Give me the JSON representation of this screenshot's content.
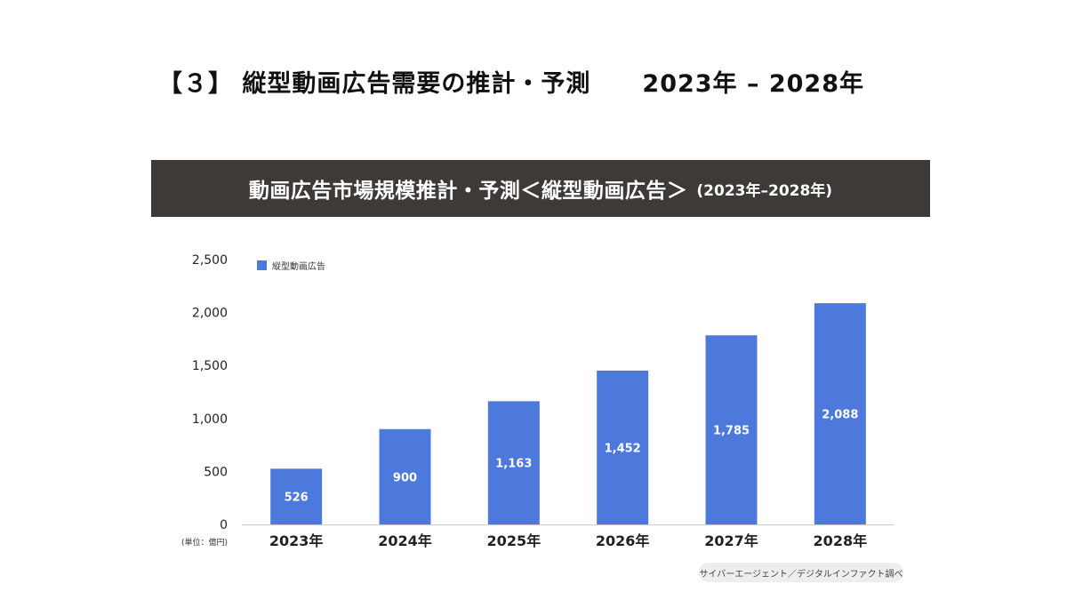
{
  "header": {
    "title": "【３】 縦型動画広告需要の推計・予測",
    "range": "2023年 – 2028年"
  },
  "banner": {
    "main": "動画広告市場規模推計・予測＜縦型動画広告＞",
    "sub": "(2023年–2028年)"
  },
  "chart_data": {
    "type": "bar",
    "categories": [
      "2023年",
      "2024年",
      "2025年",
      "2026年",
      "2027年",
      "2028年"
    ],
    "series": [
      {
        "name": "縦型動画広告",
        "values": [
          526,
          900,
          1163,
          1452,
          1785,
          2088
        ],
        "color": "#4e79dc"
      }
    ],
    "value_labels": [
      "526",
      "900",
      "1,163",
      "1,452",
      "1,785",
      "2,088"
    ],
    "ylim": [
      0,
      2500
    ],
    "yticks": [
      0,
      500,
      1000,
      1500,
      2000,
      2500
    ],
    "ytick_labels": [
      "0",
      "500",
      "1,000",
      "1,500",
      "2,000",
      "2,500"
    ],
    "unit_label": "(単位：億円)",
    "legend_position": "top-left",
    "grid": false
  },
  "source": "サイバーエージェント／デジタルインファクト調べ"
}
